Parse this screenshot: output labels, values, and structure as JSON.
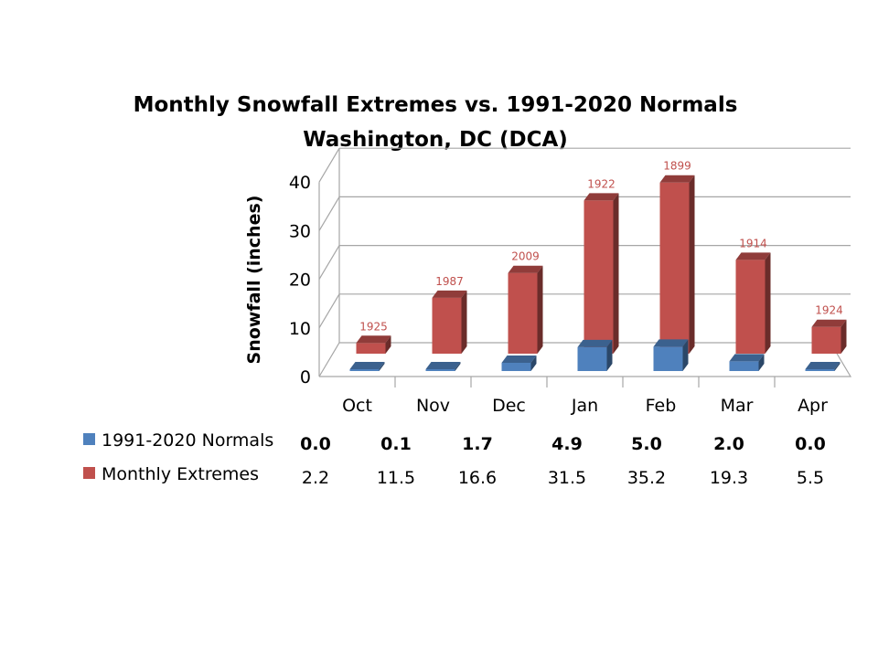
{
  "chart_data": {
    "type": "bar",
    "title": "Monthly Snowfall Extremes vs. 1991-2020 Normals",
    "subtitle": "Washington, DC (DCA)",
    "ylabel": "Snowfall (inches)",
    "xlabel": "",
    "ylim": [
      0,
      40
    ],
    "yticks": [
      "0",
      "10",
      "20",
      "30",
      "40"
    ],
    "grid": true,
    "categories": [
      "Oct",
      "Nov",
      "Dec",
      "Jan",
      "Feb",
      "Mar",
      "Apr"
    ],
    "series": [
      {
        "name": "1991-2020 Normals",
        "color": "#4f81bd",
        "values": [
          0.0,
          0.1,
          1.7,
          4.9,
          5.0,
          2.0,
          0.0
        ],
        "labels": [
          "0.0",
          "0.1",
          "1.7",
          "4.9",
          "5.0",
          "2.0",
          "0.0"
        ]
      },
      {
        "name": "Monthly Extremes",
        "color": "#c0504d",
        "values": [
          2.2,
          11.5,
          16.6,
          31.5,
          35.2,
          19.3,
          5.5
        ],
        "labels": [
          "2.2",
          "11.5",
          "16.6",
          "31.5",
          "35.2",
          "19.3",
          "5.5"
        ],
        "annotations": [
          "1925",
          "1987",
          "2009",
          "1922",
          "1899",
          "1914",
          "1924"
        ]
      }
    ]
  }
}
